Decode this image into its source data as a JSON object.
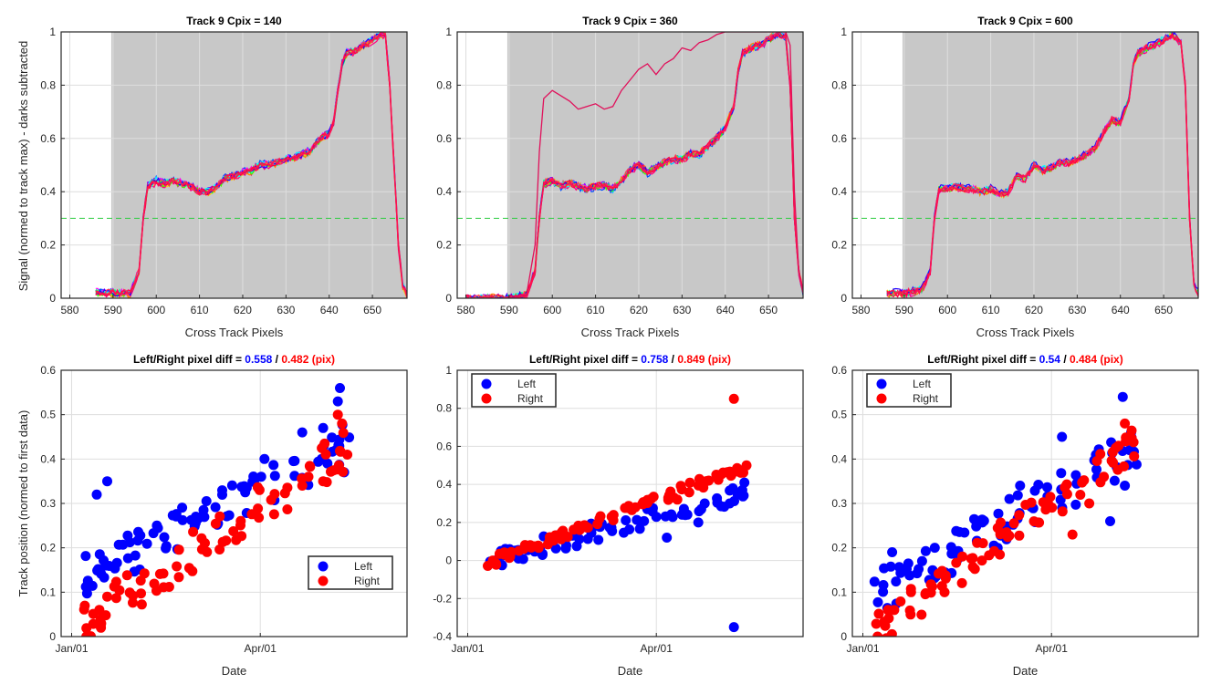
{
  "figure": {
    "top_ylabel": "Signal (normed to track max) - darks subtracted",
    "bottom_ylabel": "Track position (normed to first data)",
    "top_xlabel": "Cross Track Pixels",
    "bottom_xlabel": "Date"
  },
  "chart_data": [
    {
      "type": "line",
      "title": "Track 9 Cpix = 140",
      "xlabel": "Cross Track Pixels",
      "ylabel": "Signal (normed to track max) - darks subtracted",
      "xlim": [
        578,
        658
      ],
      "ylim": [
        0,
        1
      ],
      "xticks": [
        580,
        590,
        600,
        610,
        620,
        630,
        640,
        650
      ],
      "yticks": [
        0,
        0.2,
        0.4,
        0.6,
        0.8,
        1
      ],
      "shaded_region_x": [
        589.6,
        658
      ],
      "threshold": 0.3,
      "profile": {
        "x": [
          586,
          590,
          594,
          596,
          597,
          598,
          600,
          602,
          604,
          606,
          608,
          610,
          612,
          614,
          616,
          618,
          620,
          622,
          624,
          626,
          628,
          630,
          632,
          634,
          636,
          638,
          640,
          641,
          642,
          643,
          644,
          646,
          648,
          650,
          652,
          653,
          654,
          655,
          656,
          657,
          658
        ],
        "y": [
          0.02,
          0.02,
          0.02,
          0.1,
          0.3,
          0.42,
          0.44,
          0.43,
          0.44,
          0.43,
          0.42,
          0.4,
          0.4,
          0.42,
          0.45,
          0.46,
          0.47,
          0.48,
          0.5,
          0.5,
          0.51,
          0.52,
          0.53,
          0.54,
          0.56,
          0.6,
          0.62,
          0.66,
          0.78,
          0.88,
          0.92,
          0.93,
          0.95,
          0.97,
          0.99,
          0.99,
          0.8,
          0.5,
          0.2,
          0.05,
          0.01
        ]
      },
      "outlier": null
    },
    {
      "type": "line",
      "title": "Track 9 Cpix = 360",
      "xlabel": "Cross Track Pixels",
      "ylabel": "",
      "xlim": [
        578,
        658
      ],
      "ylim": [
        0,
        1
      ],
      "xticks": [
        580,
        590,
        600,
        610,
        620,
        630,
        640,
        650
      ],
      "yticks": [
        0,
        0.2,
        0.4,
        0.6,
        0.8,
        1
      ],
      "shaded_region_x": [
        589.6,
        658
      ],
      "threshold": 0.3,
      "profile": {
        "x": [
          580,
          590,
          594,
          596,
          597,
          598,
          600,
          602,
          604,
          606,
          608,
          610,
          612,
          614,
          616,
          618,
          620,
          622,
          624,
          626,
          628,
          630,
          632,
          634,
          636,
          638,
          640,
          642,
          643,
          644,
          646,
          648,
          650,
          652,
          654,
          655,
          656,
          657,
          658
        ],
        "y": [
          0.0,
          0.0,
          0.01,
          0.1,
          0.3,
          0.43,
          0.44,
          0.42,
          0.43,
          0.42,
          0.41,
          0.42,
          0.42,
          0.41,
          0.44,
          0.48,
          0.5,
          0.47,
          0.49,
          0.51,
          0.52,
          0.52,
          0.54,
          0.54,
          0.57,
          0.6,
          0.64,
          0.72,
          0.85,
          0.92,
          0.94,
          0.95,
          0.97,
          0.99,
          0.98,
          0.8,
          0.3,
          0.1,
          0.02
        ]
      },
      "outlier": {
        "x": [
          580,
          590,
          594,
          596,
          597,
          598,
          600,
          602,
          604,
          606,
          608,
          610,
          612,
          614,
          616,
          618,
          620,
          622,
          624,
          626,
          628,
          630,
          632,
          634,
          636,
          638,
          640,
          644,
          648,
          652,
          654,
          655,
          656,
          657,
          658
        ],
        "y": [
          0.0,
          0.0,
          0.01,
          0.2,
          0.55,
          0.75,
          0.78,
          0.76,
          0.74,
          0.71,
          0.72,
          0.73,
          0.71,
          0.72,
          0.78,
          0.82,
          0.86,
          0.88,
          0.84,
          0.88,
          0.9,
          0.94,
          0.93,
          0.96,
          0.97,
          0.99,
          1.0,
          1.0,
          1.0,
          1.0,
          1.0,
          0.95,
          0.4,
          0.1,
          0.02
        ]
      }
    },
    {
      "type": "line",
      "title": "Track 9 Cpix = 600",
      "xlabel": "Cross Track Pixels",
      "ylabel": "",
      "xlim": [
        578,
        658
      ],
      "ylim": [
        0,
        1
      ],
      "xticks": [
        580,
        590,
        600,
        610,
        620,
        630,
        640,
        650
      ],
      "yticks": [
        0,
        0.2,
        0.4,
        0.6,
        0.8,
        1
      ],
      "shaded_region_x": [
        589.6,
        658
      ],
      "threshold": 0.3,
      "profile": {
        "x": [
          586,
          590,
          594,
          596,
          597,
          598,
          600,
          602,
          604,
          606,
          608,
          610,
          612,
          614,
          616,
          618,
          620,
          622,
          624,
          626,
          628,
          630,
          632,
          634,
          636,
          638,
          640,
          642,
          643,
          644,
          646,
          648,
          650,
          652,
          654,
          655,
          656,
          657,
          658
        ],
        "y": [
          0.02,
          0.02,
          0.03,
          0.1,
          0.3,
          0.41,
          0.41,
          0.42,
          0.41,
          0.41,
          0.4,
          0.41,
          0.39,
          0.4,
          0.46,
          0.45,
          0.5,
          0.48,
          0.49,
          0.51,
          0.51,
          0.52,
          0.54,
          0.56,
          0.62,
          0.67,
          0.66,
          0.75,
          0.88,
          0.92,
          0.94,
          0.95,
          0.97,
          0.99,
          0.96,
          0.8,
          0.3,
          0.05,
          0.02
        ]
      },
      "outlier": null
    },
    {
      "type": "scatter",
      "title_prefix": "Left/Right pixel diff = ",
      "title_left": "0.558",
      "title_sep": " / ",
      "title_right": "0.482 (pix)",
      "xlabel": "Date",
      "ylabel": "Track position (normed to first data)",
      "xlim": [
        -5,
        160
      ],
      "ylim": [
        0,
        0.6
      ],
      "xticks": [
        0,
        90
      ],
      "xticklabels": [
        "Jan/01",
        "Apr/01"
      ],
      "yticks": [
        0,
        0.1,
        0.2,
        0.3,
        0.4,
        0.5,
        0.6
      ],
      "legend_location": "lower-right",
      "legend": [
        "Left",
        "Right"
      ],
      "series": [
        {
          "name": "Left",
          "color": "#0000ff",
          "trend": [
            [
              8,
              0.14
            ],
            [
              130,
              0.43
            ]
          ],
          "spread": 0.05,
          "extra": [
            [
              12,
              0.32
            ],
            [
              17,
              0.35
            ],
            [
              128,
              0.56
            ],
            [
              127,
              0.53
            ],
            [
              120,
              0.47
            ],
            [
              110,
              0.46
            ],
            [
              92,
              0.4
            ],
            [
              130,
              0.37
            ]
          ]
        },
        {
          "name": "Right",
          "color": "#ff0000",
          "trend": [
            [
              8,
              0.04
            ],
            [
              130,
              0.42
            ]
          ],
          "spread": 0.05,
          "extra": [
            [
              7,
              0.0
            ],
            [
              14,
              0.02
            ],
            [
              17,
              0.09
            ],
            [
              127,
              0.5
            ],
            [
              129,
              0.48
            ],
            [
              113,
              0.36
            ],
            [
              110,
              0.34
            ],
            [
              120,
              0.35
            ]
          ]
        }
      ]
    },
    {
      "type": "scatter",
      "title_prefix": "Left/Right pixel diff = ",
      "title_left": "0.758",
      "title_sep": " / ",
      "title_right": "0.849 (pix)",
      "xlabel": "Date",
      "ylabel": "",
      "xlim": [
        -5,
        160
      ],
      "ylim": [
        -0.4,
        1
      ],
      "xticks": [
        0,
        90
      ],
      "xticklabels": [
        "Jan/01",
        "Apr/01"
      ],
      "yticks": [
        -0.4,
        -0.2,
        0,
        0.2,
        0.4,
        0.6,
        0.8,
        1
      ],
      "legend_location": "top-left",
      "legend": [
        "Left",
        "Right"
      ],
      "series": [
        {
          "name": "Left",
          "color": "#0000ff",
          "trend": [
            [
              12,
              0.01
            ],
            [
              130,
              0.35
            ]
          ],
          "spread": 0.05,
          "extra": [
            [
              127,
              -0.35
            ],
            [
              132,
              0.41
            ],
            [
              131,
              0.37
            ],
            [
              125,
              0.3
            ],
            [
              110,
              0.2
            ],
            [
              95,
              0.12
            ],
            [
              20,
              0.06
            ]
          ]
        },
        {
          "name": "Right",
          "color": "#ff0000",
          "trend": [
            [
              12,
              0.0
            ],
            [
              130,
              0.48
            ]
          ],
          "spread": 0.03,
          "extra": [
            [
              127,
              0.85
            ],
            [
              133,
              0.5
            ],
            [
              131,
              0.47
            ],
            [
              115,
              0.42
            ],
            [
              100,
              0.32
            ],
            [
              80,
              0.28
            ],
            [
              12,
              0.0
            ]
          ]
        }
      ]
    },
    {
      "type": "scatter",
      "title_prefix": "Left/Right pixel diff = ",
      "title_left": "0.54",
      "title_sep": " / ",
      "title_right": "0.484 (pix)",
      "xlabel": "Date",
      "ylabel": "",
      "xlim": [
        -5,
        160
      ],
      "ylim": [
        0,
        0.6
      ],
      "xticks": [
        0,
        90
      ],
      "xticklabels": [
        "Jan/01",
        "Apr/01"
      ],
      "yticks": [
        0,
        0.1,
        0.2,
        0.3,
        0.4,
        0.5,
        0.6
      ],
      "legend_location": "top-left",
      "legend": [
        "Left",
        "Right"
      ],
      "series": [
        {
          "name": "Left",
          "color": "#0000ff",
          "trend": [
            [
              8,
              0.1
            ],
            [
              130,
              0.42
            ]
          ],
          "spread": 0.05,
          "extra": [
            [
              124,
              0.54
            ],
            [
              128,
              0.46
            ],
            [
              95,
              0.45
            ],
            [
              75,
              0.34
            ],
            [
              125,
              0.34
            ],
            [
              118,
              0.26
            ],
            [
              14,
              0.19
            ]
          ]
        },
        {
          "name": "Right",
          "color": "#ff0000",
          "trend": [
            [
              8,
              0.02
            ],
            [
              130,
              0.44
            ]
          ],
          "spread": 0.04,
          "extra": [
            [
              7,
              0.0
            ],
            [
              12,
              0.06
            ],
            [
              125,
              0.48
            ],
            [
              122,
              0.43
            ],
            [
              115,
              0.36
            ],
            [
              108,
              0.3
            ],
            [
              100,
              0.23
            ]
          ]
        }
      ]
    }
  ]
}
